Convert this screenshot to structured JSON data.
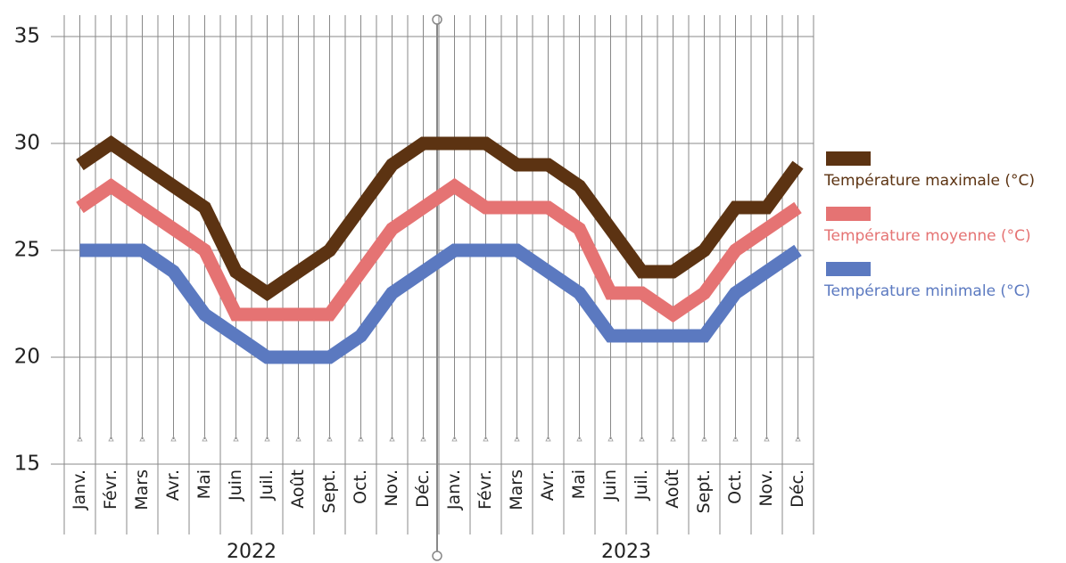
{
  "chart_data": {
    "type": "line",
    "categories": [
      "Janv.",
      "Févr.",
      "Mars",
      "Avr.",
      "Mai",
      "Juin",
      "Juil.",
      "Août",
      "Sept.",
      "Oct.",
      "Nov.",
      "Déc.",
      "Janv.",
      "Févr.",
      "Mars",
      "Avr.",
      "Mai",
      "Juin",
      "Juil.",
      "Août",
      "Sept.",
      "Oct.",
      "Nov.",
      "Déc."
    ],
    "x_groups": [
      "2022",
      "2023"
    ],
    "series": [
      {
        "name": "Température maximale (°C)",
        "color": "#5c3312",
        "values": [
          29,
          30,
          29,
          28,
          27,
          24,
          23,
          24,
          25,
          27,
          29,
          30,
          30,
          30,
          29,
          29,
          28,
          26,
          24,
          24,
          25,
          27,
          27,
          29
        ]
      },
      {
        "name": "Température moyenne (°C)",
        "color": "#e57373",
        "values": [
          27,
          28,
          27,
          26,
          25,
          22,
          22,
          22,
          22,
          24,
          26,
          27,
          28,
          27,
          27,
          27,
          26,
          23,
          23,
          22,
          23,
          25,
          26,
          27
        ]
      },
      {
        "name": "Température minimale (°C)",
        "color": "#5b79c0",
        "values": [
          25,
          25,
          25,
          24,
          22,
          21,
          20,
          20,
          20,
          21,
          23,
          24,
          25,
          25,
          25,
          24,
          23,
          21,
          21,
          21,
          21,
          23,
          24,
          25
        ]
      }
    ],
    "ylim": [
      15,
      36
    ],
    "yticks": [
      15,
      20,
      25,
      30,
      35
    ],
    "grid": true,
    "legend": "right"
  }
}
